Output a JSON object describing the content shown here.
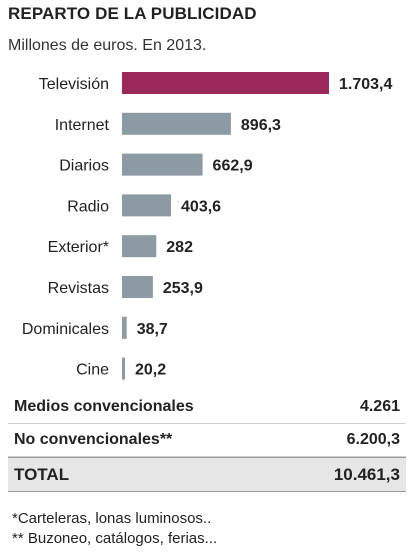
{
  "title": "REPARTO DE LA PUBLICIDAD",
  "subtitle": "Millones de euros. En 2013.",
  "chart_data": {
    "type": "bar",
    "orientation": "horizontal",
    "categories": [
      "Televisión",
      "Internet",
      "Diarios",
      "Radio",
      "Exterior*",
      "Revistas",
      "Dominicales",
      "Cine"
    ],
    "values": [
      1703.4,
      896.3,
      662.9,
      403.6,
      282,
      253.9,
      38.7,
      20.2
    ],
    "value_labels": [
      "1.703,4",
      "896,3",
      "662,9",
      "403,6",
      "282",
      "253,9",
      "38,7",
      "20,2"
    ],
    "highlight_color": "#9b2a5a",
    "bar_color": "#8c9aa3",
    "title": "REPARTO DE LA PUBLICIDAD",
    "xlim": [
      0,
      1703.4
    ],
    "grid": false,
    "legend": "none"
  },
  "summary": [
    {
      "label": "Medios convencionales",
      "value": "4.261"
    },
    {
      "label": "No convencionales**",
      "value": "6.200,3"
    }
  ],
  "total": {
    "label": "TOTAL",
    "value": "10.461,3"
  },
  "notes": [
    "*Carteleras, lonas luminosos..",
    "** Buzoneo, catálogos, ferias..."
  ]
}
